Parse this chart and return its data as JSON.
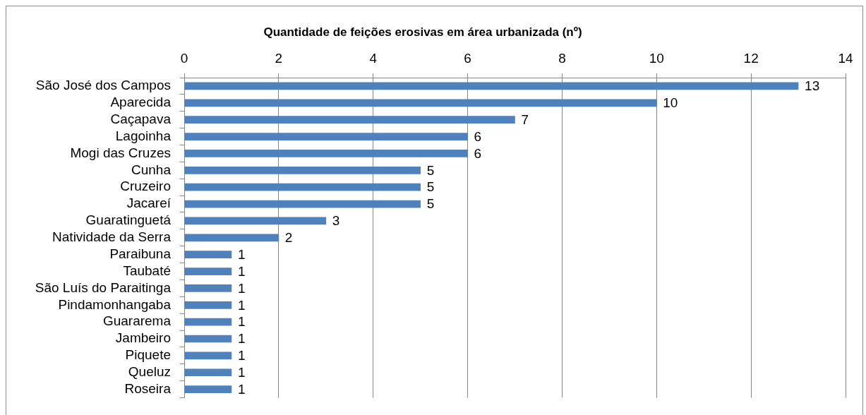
{
  "chart_data": {
    "type": "bar",
    "orientation": "horizontal",
    "title": "Quantidade de feições erosivas em área urbanizada (nº)",
    "categories": [
      "São José dos Campos",
      "Aparecida",
      "Caçapava",
      "Lagoinha",
      "Mogi das Cruzes",
      "Cunha",
      "Cruzeiro",
      "Jacareí",
      "Guaratinguetá",
      "Natividade da Serra",
      "Paraibuna",
      "Taubaté",
      "São Luís do Paraitinga",
      "Pindamonhangaba",
      "Guararema",
      "Jambeiro",
      "Piquete",
      "Queluz",
      "Roseira"
    ],
    "values": [
      13,
      10,
      7,
      6,
      6,
      5,
      5,
      5,
      3,
      2,
      1,
      1,
      1,
      1,
      1,
      1,
      1,
      1,
      1
    ],
    "color": "#4f81bd",
    "xlim": [
      0,
      14
    ],
    "xticks": [
      0,
      2,
      4,
      6,
      8,
      10,
      12,
      14
    ],
    "grid": "x",
    "data_labels": true
  }
}
